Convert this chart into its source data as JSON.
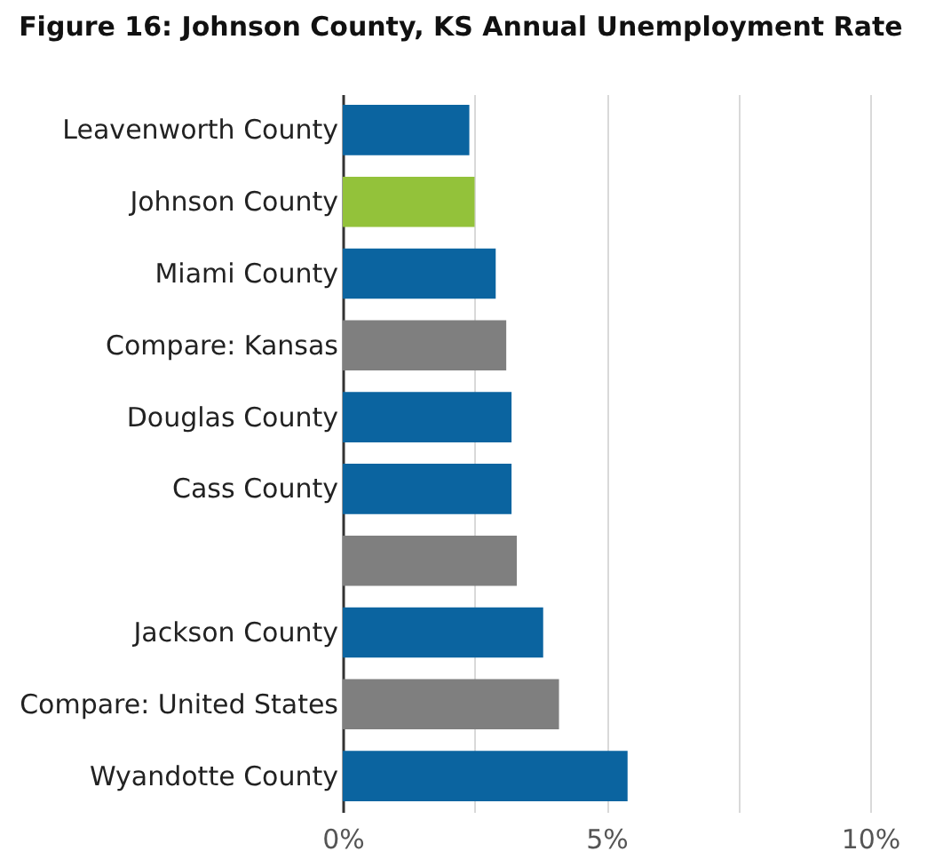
{
  "chart_data": {
    "type": "bar",
    "orientation": "horizontal",
    "title": "Figure 16: Johnson County, KS Annual Unemployment Rate",
    "categories": [
      "Leavenworth County",
      "Johnson County",
      "Miami County",
      "Compare: Kansas",
      "Douglas County",
      "Cass County",
      null,
      "Jackson County",
      "Compare: United States",
      "Wyandotte County"
    ],
    "values": [
      2.4,
      2.5,
      2.9,
      3.1,
      3.2,
      3.2,
      3.3,
      3.8,
      4.1,
      5.4
    ],
    "colors": [
      "#0b64a0",
      "#93c23a",
      "#0b64a0",
      "#7f7f7f",
      "#0b64a0",
      "#0b64a0",
      "#7f7f7f",
      "#0b64a0",
      "#7f7f7f",
      "#0b64a0"
    ],
    "xlim": [
      0,
      10
    ],
    "xticks": [
      {
        "value": 0,
        "label": "0%"
      },
      {
        "value": 2.5,
        "label": null
      },
      {
        "value": 5,
        "label": "5%"
      },
      {
        "value": 7.5,
        "label": null
      },
      {
        "value": 10,
        "label": "10%"
      }
    ],
    "grid": "x"
  }
}
